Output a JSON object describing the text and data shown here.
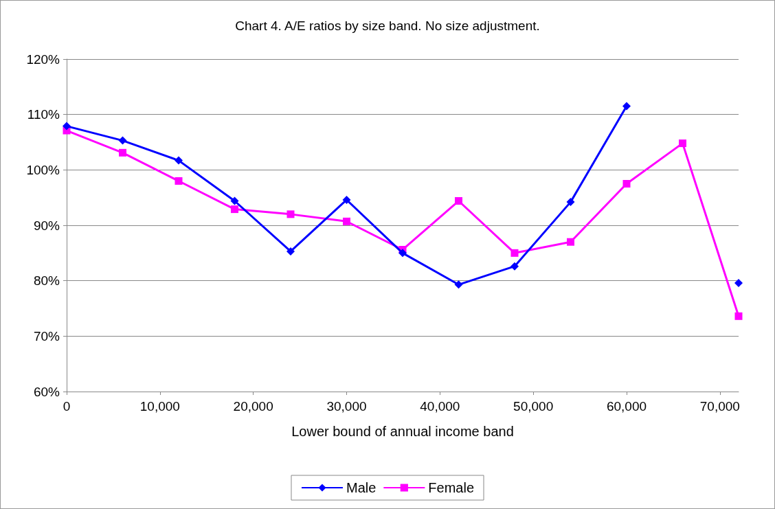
{
  "chart_data": {
    "type": "line",
    "title": "Chart 4. A/E ratios by size band. No size adjustment.",
    "xlabel": "Lower bound of annual income band",
    "x": [
      0,
      6000,
      12000,
      18000,
      24000,
      30000,
      36000,
      42000,
      48000,
      54000,
      60000,
      66000,
      72000
    ],
    "series": [
      {
        "name": "Male",
        "color": "#0000ff",
        "marker": "diamond",
        "values": [
          107.9,
          105.3,
          101.7,
          94.4,
          85.3,
          94.6,
          85,
          79.3,
          82.6,
          94.2,
          111.5,
          null,
          79.6
        ]
      },
      {
        "name": "Female",
        "color": "#ff00ff",
        "marker": "square",
        "values": [
          107.1,
          103.1,
          98,
          92.9,
          92,
          90.7,
          85.6,
          94.4,
          85,
          87,
          97.5,
          104.8,
          73.6
        ]
      }
    ],
    "xlim": [
      0,
      72000
    ],
    "xticks": [
      0,
      {
        "value": 10000,
        "label": "10,000"
      },
      {
        "value": 20000,
        "label": "20,000"
      },
      {
        "value": 30000,
        "label": "30,000"
      },
      {
        "value": 40000,
        "label": "40,000"
      },
      {
        "value": 50000,
        "label": "50,000"
      },
      {
        "value": 60000,
        "label": "60,000"
      },
      {
        "value": 70000,
        "label": "70,000"
      }
    ],
    "ylim": [
      60,
      120
    ],
    "yticks": [
      {
        "value": 60,
        "label": "60%"
      },
      {
        "value": 70,
        "label": "70%"
      },
      {
        "value": 80,
        "label": "80%"
      },
      {
        "value": 90,
        "label": "90%"
      },
      {
        "value": 100,
        "label": "100%"
      },
      {
        "value": 110,
        "label": "110%"
      },
      {
        "value": 120,
        "label": "120%"
      }
    ],
    "grid": "y",
    "legend": "bottom",
    "line_style": "solid"
  }
}
